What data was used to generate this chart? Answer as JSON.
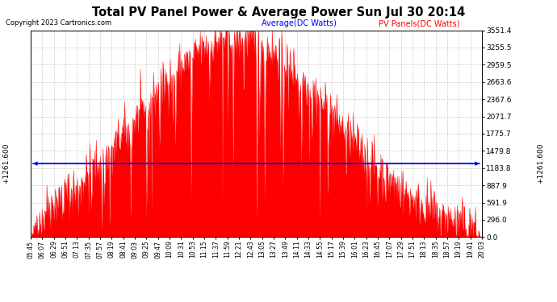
{
  "title": "Total PV Panel Power & Average Power Sun Jul 30 20:14",
  "copyright": "Copyright 2023 Cartronics.com",
  "legend_avg": "Average(DC Watts)",
  "legend_pv": "PV Panels(DC Watts)",
  "avg_value": 1261.6,
  "ymin": 0.0,
  "ymax": 3551.4,
  "yticks": [
    0.0,
    296.0,
    591.9,
    887.9,
    1183.8,
    1479.8,
    1775.7,
    2071.7,
    2367.6,
    2663.6,
    2959.5,
    3255.5,
    3551.4
  ],
  "background_color": "#ffffff",
  "fill_color": "#ff0000",
  "line_color": "#ff0000",
  "avg_line_color": "#0000ff",
  "grid_color": "#cccccc",
  "x_label_color": "#000000",
  "title_color": "#000000",
  "copyright_color": "#000000",
  "avg_legend_color": "#0000ff",
  "pv_legend_color": "#ff0000",
  "xtick_labels": [
    "05:45",
    "06:07",
    "06:29",
    "06:51",
    "07:13",
    "07:35",
    "07:57",
    "08:19",
    "08:41",
    "09:03",
    "09:25",
    "09:47",
    "10:09",
    "10:31",
    "10:53",
    "11:15",
    "11:37",
    "11:59",
    "12:21",
    "12:43",
    "13:05",
    "13:27",
    "13:49",
    "14:11",
    "14:33",
    "14:55",
    "15:17",
    "15:39",
    "16:01",
    "16:23",
    "16:45",
    "17:07",
    "17:29",
    "17:51",
    "18:13",
    "18:35",
    "18:57",
    "19:19",
    "19:41",
    "20:03"
  ],
  "start_hhmm": "05:45",
  "peak_hhmm": "12:15",
  "sigma_min": 185,
  "peak_watts": 3420,
  "n_points": 860,
  "noise_seed": 42
}
